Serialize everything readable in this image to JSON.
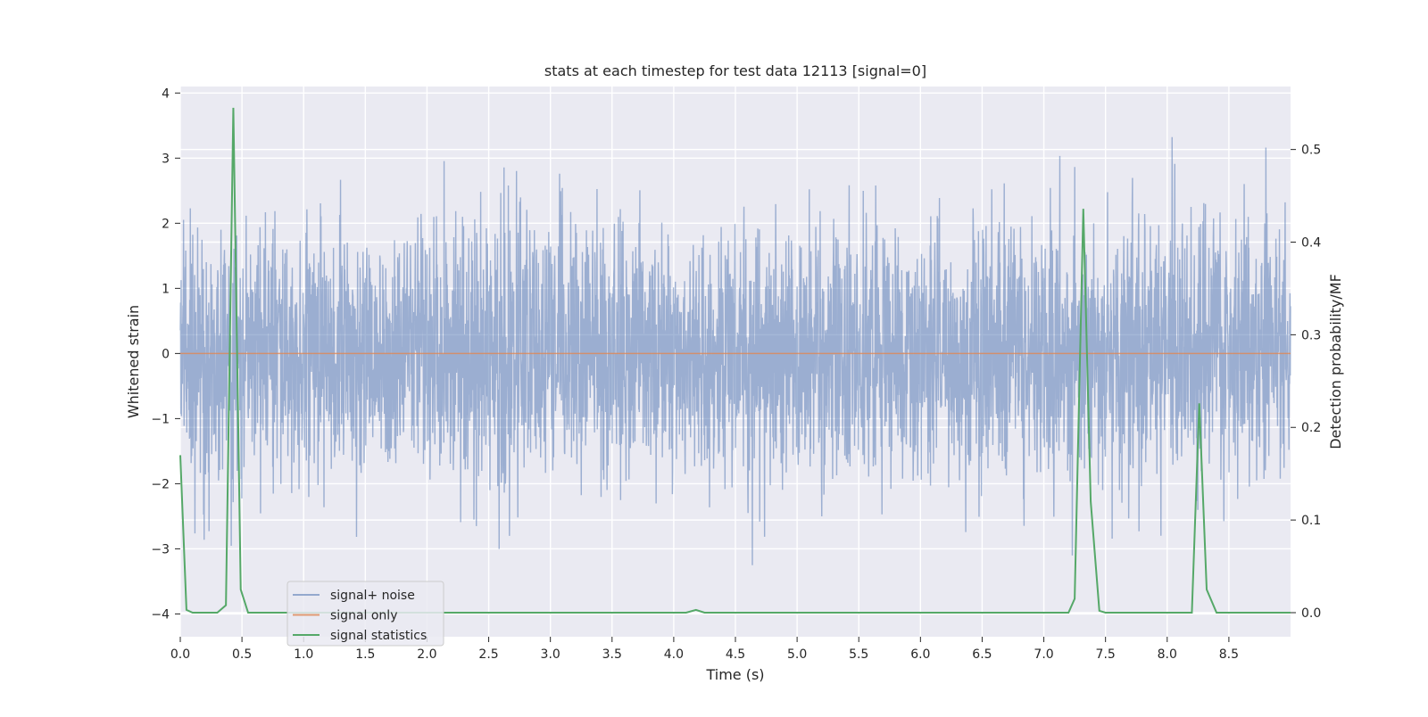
{
  "chart_data": {
    "type": "line",
    "title": "stats at each timestep for test data 12113 [signal=0]",
    "xlabel": "Time (s)",
    "ylabel": "Whitened strain",
    "ylabel_right": "Detection probability/MF",
    "xlim": [
      0.0,
      9.0
    ],
    "ylim": [
      -4.35,
      4.1
    ],
    "ylim_right": [
      -0.026,
      0.568
    ],
    "x_ticks": [
      "0.0",
      "0.5",
      "1.0",
      "1.5",
      "2.0",
      "2.5",
      "3.0",
      "3.5",
      "4.0",
      "4.5",
      "5.0",
      "5.5",
      "6.0",
      "6.5",
      "7.0",
      "7.5",
      "8.0",
      "8.5"
    ],
    "y_ticks": [
      "−4",
      "−3",
      "−2",
      "−1",
      "0",
      "1",
      "2",
      "3",
      "4"
    ],
    "y_ticks_right": [
      "0.0",
      "0.1",
      "0.2",
      "0.3",
      "0.4",
      "0.5"
    ],
    "grid": true,
    "legend_position": "lower-left",
    "colors": {
      "background": "#eaeaf2",
      "grid": "#ffffff",
      "signal_noise": "#4c72b0",
      "signal_only": "#dd8452",
      "signal_statistics": "#55a868"
    },
    "series": [
      {
        "name": "signal+ noise",
        "axis": "left",
        "x_range": [
          0.0,
          9.0
        ],
        "samples": 4096,
        "description_values": {
          "typical_envelope": [
            -2.0,
            2.2
          ],
          "max": 3.75,
          "min": -3.6
        }
      },
      {
        "name": "signal only",
        "axis": "left",
        "x": [
          0.0,
          9.0
        ],
        "y": [
          0.0,
          0.0
        ]
      },
      {
        "name": "signal statistics",
        "axis": "right",
        "x": [
          0.0,
          0.05,
          0.1,
          0.3,
          0.37,
          0.43,
          0.49,
          0.55,
          4.1,
          4.18,
          4.25,
          7.2,
          7.25,
          7.32,
          7.38,
          7.45,
          7.5,
          8.2,
          8.26,
          8.32,
          8.4,
          9.0
        ],
        "y": [
          0.17,
          0.003,
          0.0,
          0.0,
          0.008,
          0.545,
          0.025,
          0.0,
          0.0,
          0.003,
          0.0,
          0.0,
          0.015,
          0.436,
          0.12,
          0.002,
          0.0,
          0.0,
          0.226,
          0.025,
          0.0,
          0.0
        ]
      }
    ]
  }
}
